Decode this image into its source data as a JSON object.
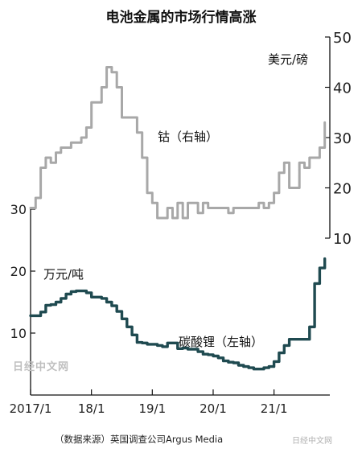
{
  "title": "电池金属的市场行情高涨",
  "source": "（数据来源）英国调查公司Argus Media",
  "watermark_left": "日经中文网",
  "watermark_right": "日经中文网",
  "chart_data": {
    "type": "line",
    "title": "电池金属的市场行情高涨",
    "x_ticks": [
      "2017/1",
      "18/1",
      "19/1",
      "20/1",
      "21/1"
    ],
    "x_range": [
      "2017-01",
      "2021-12"
    ],
    "grid": false,
    "series": [
      {
        "name": "钴（右轴）",
        "axis": "right",
        "unit": "美元/磅",
        "color": "#a8a8a8",
        "x": [
          "2017-01",
          "2017-02",
          "2017-03",
          "2017-04",
          "2017-05",
          "2017-06",
          "2017-07",
          "2017-08",
          "2017-09",
          "2017-10",
          "2017-11",
          "2017-12",
          "2018-01",
          "2018-02",
          "2018-03",
          "2018-04",
          "2018-05",
          "2018-06",
          "2018-07",
          "2018-08",
          "2018-09",
          "2018-10",
          "2018-11",
          "2018-12",
          "2019-01",
          "2019-02",
          "2019-03",
          "2019-04",
          "2019-05",
          "2019-06",
          "2019-07",
          "2019-08",
          "2019-09",
          "2019-10",
          "2019-11",
          "2019-12",
          "2020-01",
          "2020-02",
          "2020-03",
          "2020-04",
          "2020-05",
          "2020-06",
          "2020-07",
          "2020-08",
          "2020-09",
          "2020-10",
          "2020-11",
          "2020-12",
          "2021-01",
          "2021-02",
          "2021-03",
          "2021-04",
          "2021-05",
          "2021-06",
          "2021-07",
          "2021-08",
          "2021-09",
          "2021-10",
          "2021-11"
        ],
        "values": [
          16,
          18,
          24,
          26,
          25,
          27,
          28,
          28,
          29,
          29,
          30,
          32,
          37,
          37,
          40,
          44,
          43,
          40,
          34,
          34,
          34,
          31,
          26,
          19,
          17,
          14,
          14,
          16,
          14,
          17,
          14,
          17,
          17,
          15,
          17,
          16,
          16,
          16,
          16,
          15,
          16,
          16,
          16,
          16,
          16,
          17,
          16,
          17,
          19,
          23,
          25,
          20,
          20,
          25,
          24,
          26,
          26,
          28,
          33
        ]
      },
      {
        "name": "碳酸锂（左轴）",
        "axis": "left",
        "unit": "万元/吨",
        "color": "#1f4a50",
        "x": [
          "2017-01",
          "2017-02",
          "2017-03",
          "2017-04",
          "2017-05",
          "2017-06",
          "2017-07",
          "2017-08",
          "2017-09",
          "2017-10",
          "2017-11",
          "2017-12",
          "2018-01",
          "2018-02",
          "2018-03",
          "2018-04",
          "2018-05",
          "2018-06",
          "2018-07",
          "2018-08",
          "2018-09",
          "2018-10",
          "2018-11",
          "2018-12",
          "2019-01",
          "2019-02",
          "2019-03",
          "2019-04",
          "2019-05",
          "2019-06",
          "2019-07",
          "2019-08",
          "2019-09",
          "2019-10",
          "2019-11",
          "2019-12",
          "2020-01",
          "2020-02",
          "2020-03",
          "2020-04",
          "2020-05",
          "2020-06",
          "2020-07",
          "2020-08",
          "2020-09",
          "2020-10",
          "2020-11",
          "2020-12",
          "2021-01",
          "2021-02",
          "2021-03",
          "2021-04",
          "2021-05",
          "2021-06",
          "2021-07",
          "2021-08",
          "2021-09",
          "2021-10",
          "2021-11"
        ],
        "values": [
          12.8,
          12.8,
          13.4,
          14.5,
          14.6,
          15.0,
          15.6,
          16.3,
          16.7,
          16.8,
          16.8,
          16.5,
          15.8,
          15.8,
          15.6,
          15.0,
          14.4,
          13.5,
          12.3,
          11.0,
          9.7,
          8.5,
          8.4,
          8.2,
          8.2,
          8.0,
          7.8,
          8.4,
          8.4,
          7.5,
          7.6,
          7.4,
          7.4,
          7.0,
          6.6,
          6.5,
          6.3,
          6.0,
          5.5,
          5.3,
          5.2,
          4.8,
          4.6,
          4.4,
          4.2,
          4.2,
          4.4,
          4.6,
          5.4,
          6.8,
          8.0,
          9.0,
          9.0,
          9.0,
          9.0,
          11.0,
          18.0,
          20.5,
          22.0
        ]
      }
    ],
    "left_axis": {
      "unit": "万元/吨",
      "ticks": [
        10,
        20,
        30
      ],
      "range": [
        0,
        30
      ]
    },
    "right_axis": {
      "unit": "美元/磅",
      "ticks": [
        10,
        20,
        30,
        40,
        50
      ],
      "range": [
        10,
        50
      ]
    },
    "series_labels": [
      "钴（右轴）",
      "碳酸锂（左轴）"
    ]
  }
}
